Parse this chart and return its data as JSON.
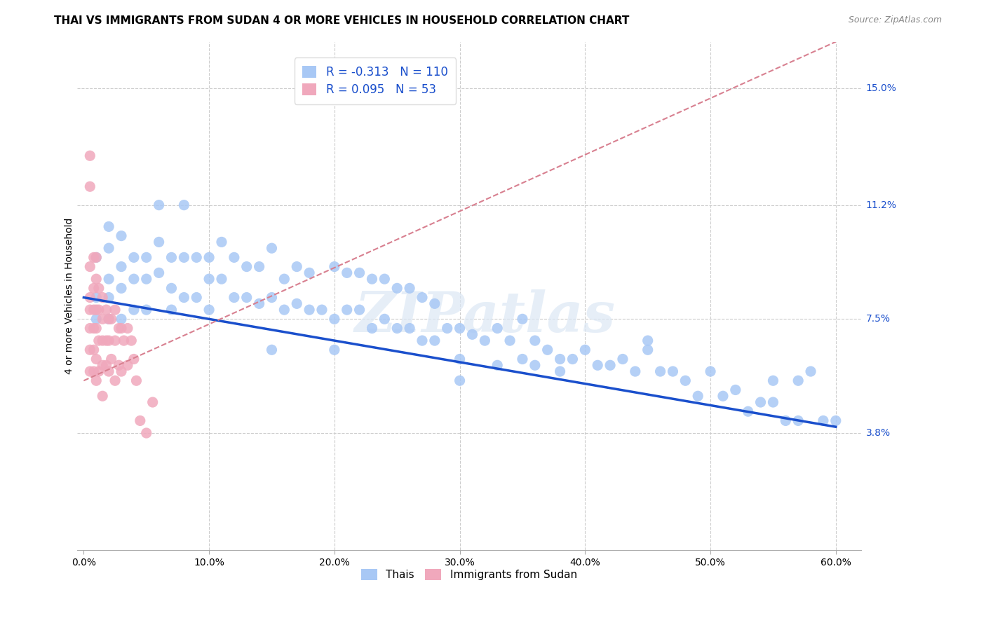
{
  "title": "THAI VS IMMIGRANTS FROM SUDAN 4 OR MORE VEHICLES IN HOUSEHOLD CORRELATION CHART",
  "source": "Source: ZipAtlas.com",
  "ylabel": "4 or more Vehicles in Household",
  "xlabel": "",
  "xlim": [
    -0.005,
    0.62
  ],
  "ylim": [
    0.0,
    0.165
  ],
  "yticks": [
    0.038,
    0.075,
    0.112,
    0.15
  ],
  "ytick_labels": [
    "3.8%",
    "7.5%",
    "11.2%",
    "15.0%"
  ],
  "xticks": [
    0.0,
    0.1,
    0.2,
    0.3,
    0.4,
    0.5,
    0.6
  ],
  "xtick_labels": [
    "0.0%",
    "10.0%",
    "20.0%",
    "30.0%",
    "40.0%",
    "50.0%",
    "60.0%"
  ],
  "thai_R": -0.313,
  "thai_N": 110,
  "sudan_R": 0.095,
  "sudan_N": 53,
  "thai_color": "#a8c8f5",
  "sudan_color": "#f0a8bc",
  "thai_line_color": "#1a4fcc",
  "sudan_line_color": "#d88090",
  "watermark_text": "ZIPatlas",
  "legend_labels": [
    "Thais",
    "Immigrants from Sudan"
  ],
  "background_color": "#ffffff",
  "grid_color": "#cccccc",
  "title_fontsize": 11,
  "axis_label_fontsize": 10,
  "tick_fontsize": 10,
  "tick_label_color_right": "#1a4fcc",
  "thai_scatter_x": [
    0.01,
    0.01,
    0.01,
    0.02,
    0.02,
    0.02,
    0.02,
    0.02,
    0.03,
    0.03,
    0.03,
    0.03,
    0.04,
    0.04,
    0.04,
    0.05,
    0.05,
    0.05,
    0.06,
    0.06,
    0.07,
    0.07,
    0.07,
    0.08,
    0.08,
    0.09,
    0.09,
    0.1,
    0.1,
    0.1,
    0.11,
    0.11,
    0.12,
    0.12,
    0.13,
    0.13,
    0.14,
    0.14,
    0.15,
    0.15,
    0.16,
    0.16,
    0.17,
    0.17,
    0.18,
    0.18,
    0.19,
    0.2,
    0.2,
    0.21,
    0.21,
    0.22,
    0.22,
    0.23,
    0.23,
    0.24,
    0.24,
    0.25,
    0.25,
    0.26,
    0.26,
    0.27,
    0.27,
    0.28,
    0.28,
    0.29,
    0.3,
    0.3,
    0.31,
    0.32,
    0.33,
    0.33,
    0.34,
    0.35,
    0.35,
    0.36,
    0.36,
    0.37,
    0.38,
    0.38,
    0.39,
    0.4,
    0.41,
    0.42,
    0.43,
    0.44,
    0.45,
    0.46,
    0.47,
    0.48,
    0.49,
    0.5,
    0.51,
    0.52,
    0.53,
    0.54,
    0.55,
    0.55,
    0.56,
    0.57,
    0.57,
    0.58,
    0.59,
    0.6,
    0.45,
    0.3,
    0.2,
    0.15,
    0.08,
    0.06
  ],
  "thai_scatter_y": [
    0.095,
    0.082,
    0.075,
    0.105,
    0.098,
    0.088,
    0.082,
    0.075,
    0.102,
    0.092,
    0.085,
    0.075,
    0.095,
    0.088,
    0.078,
    0.095,
    0.088,
    0.078,
    0.1,
    0.09,
    0.095,
    0.085,
    0.078,
    0.095,
    0.082,
    0.095,
    0.082,
    0.095,
    0.088,
    0.078,
    0.1,
    0.088,
    0.095,
    0.082,
    0.092,
    0.082,
    0.092,
    0.08,
    0.098,
    0.082,
    0.088,
    0.078,
    0.092,
    0.08,
    0.09,
    0.078,
    0.078,
    0.092,
    0.075,
    0.09,
    0.078,
    0.09,
    0.078,
    0.088,
    0.072,
    0.088,
    0.075,
    0.085,
    0.072,
    0.085,
    0.072,
    0.082,
    0.068,
    0.08,
    0.068,
    0.072,
    0.072,
    0.062,
    0.07,
    0.068,
    0.072,
    0.06,
    0.068,
    0.075,
    0.062,
    0.068,
    0.06,
    0.065,
    0.062,
    0.058,
    0.062,
    0.065,
    0.06,
    0.06,
    0.062,
    0.058,
    0.065,
    0.058,
    0.058,
    0.055,
    0.05,
    0.058,
    0.05,
    0.052,
    0.045,
    0.048,
    0.048,
    0.055,
    0.042,
    0.042,
    0.055,
    0.058,
    0.042,
    0.042,
    0.068,
    0.055,
    0.065,
    0.065,
    0.112,
    0.112
  ],
  "sudan_scatter_x": [
    0.005,
    0.005,
    0.005,
    0.005,
    0.005,
    0.005,
    0.005,
    0.005,
    0.008,
    0.008,
    0.008,
    0.008,
    0.008,
    0.008,
    0.01,
    0.01,
    0.01,
    0.01,
    0.01,
    0.01,
    0.012,
    0.012,
    0.012,
    0.012,
    0.015,
    0.015,
    0.015,
    0.015,
    0.015,
    0.018,
    0.018,
    0.018,
    0.02,
    0.02,
    0.02,
    0.022,
    0.022,
    0.025,
    0.025,
    0.025,
    0.028,
    0.028,
    0.03,
    0.03,
    0.032,
    0.035,
    0.035,
    0.038,
    0.04,
    0.042,
    0.045,
    0.05,
    0.055
  ],
  "sudan_scatter_y": [
    0.128,
    0.118,
    0.092,
    0.082,
    0.078,
    0.072,
    0.065,
    0.058,
    0.095,
    0.085,
    0.078,
    0.072,
    0.065,
    0.058,
    0.095,
    0.088,
    0.078,
    0.072,
    0.062,
    0.055,
    0.085,
    0.078,
    0.068,
    0.058,
    0.082,
    0.075,
    0.068,
    0.06,
    0.05,
    0.078,
    0.068,
    0.06,
    0.075,
    0.068,
    0.058,
    0.075,
    0.062,
    0.078,
    0.068,
    0.055,
    0.072,
    0.06,
    0.072,
    0.058,
    0.068,
    0.072,
    0.06,
    0.068,
    0.062,
    0.055,
    0.042,
    0.038,
    0.048
  ],
  "sudan_line_start_x": 0.0,
  "sudan_line_start_y": 0.055,
  "sudan_line_end_x": 0.6,
  "sudan_line_end_y": 0.165,
  "thai_line_start_x": 0.0,
  "thai_line_start_y": 0.082,
  "thai_line_end_x": 0.6,
  "thai_line_end_y": 0.04
}
